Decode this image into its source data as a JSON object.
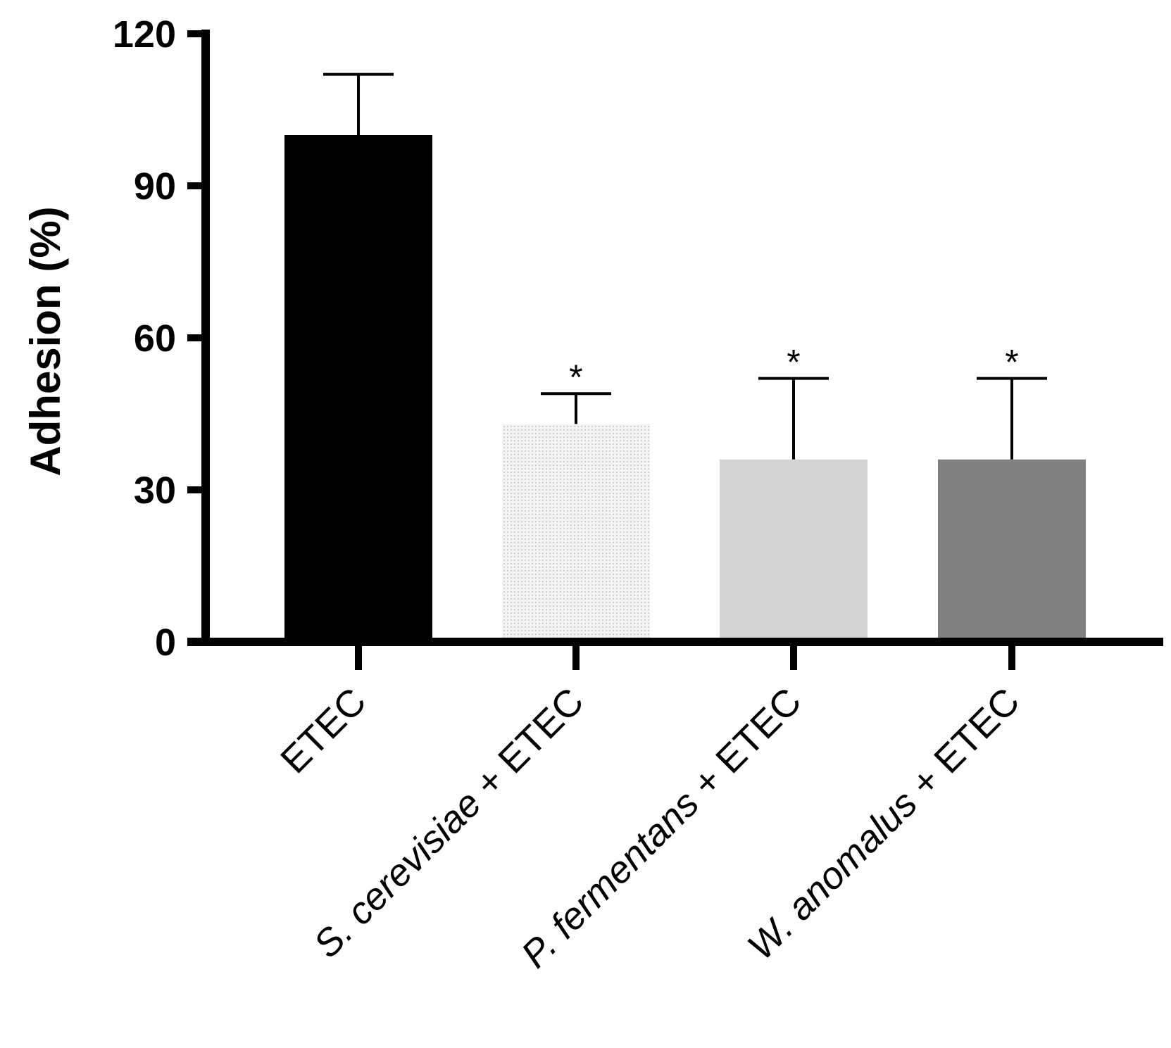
{
  "chart_data": {
    "type": "bar",
    "title": "",
    "xlabel": "",
    "ylabel": "Adhesion (%)",
    "ylim": [
      0,
      120
    ],
    "yticks": [
      0,
      30,
      60,
      90,
      120
    ],
    "grid": false,
    "categories": [
      {
        "label": "ETEC",
        "italic_prefix": ""
      },
      {
        "label": "S. cerevisiae + ETEC",
        "italic_prefix": "S. cerevisiae",
        "rest": " + ETEC"
      },
      {
        "label": "P. fermentans + ETEC",
        "italic_prefix": "P. fermentans",
        "rest": " + ETEC"
      },
      {
        "label": "W. anomalus + ETEC",
        "italic_prefix": "W. anomalus",
        "rest": " + ETEC"
      }
    ],
    "values": [
      100,
      43,
      36,
      36
    ],
    "error_upper": [
      112,
      49,
      52,
      52
    ],
    "significance": [
      "",
      "*",
      "*",
      "*"
    ],
    "bar_colors": [
      "#000000",
      "#ececec",
      "#d4d4d4",
      "#808080"
    ],
    "bar_patterns": [
      "solid",
      "dotted",
      "solid",
      "solid"
    ]
  }
}
